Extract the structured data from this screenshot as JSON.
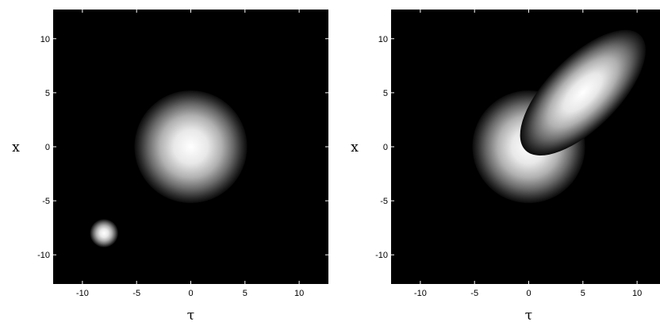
{
  "chart_data": [
    {
      "type": "heatmap",
      "xlabel": "τ",
      "ylabel": "x",
      "xlim": [
        -12.7,
        12.7
      ],
      "ylim": [
        -12.7,
        12.7
      ],
      "xticks": [
        -10,
        -5,
        0,
        5,
        10
      ],
      "yticks": [
        -10,
        -5,
        0,
        5,
        10
      ],
      "xtick_labels": [
        "-10",
        "-5",
        "0",
        "5",
        "10"
      ],
      "ytick_labels": [
        "-10",
        "-5",
        "0",
        "5",
        "10"
      ],
      "colormap": "grayscale (black = 0, white = max)",
      "grid": false,
      "blobs": [
        {
          "shape": "circle",
          "center": [
            0,
            0
          ],
          "radius": 5.2,
          "peak_intensity": 1.0
        },
        {
          "shape": "circle",
          "center": [
            -8,
            -8
          ],
          "radius": 1.3,
          "peak_intensity": 1.0
        }
      ]
    },
    {
      "type": "heatmap",
      "xlabel": "τ",
      "ylabel": "x",
      "xlim": [
        -12.7,
        12.7
      ],
      "ylim": [
        -12.7,
        12.7
      ],
      "xticks": [
        -10,
        -5,
        0,
        5,
        10
      ],
      "yticks": [
        -10,
        -5,
        0,
        5,
        10
      ],
      "xtick_labels": [
        "-10",
        "-5",
        "0",
        "5",
        "10"
      ],
      "ytick_labels": [
        "-10",
        "-5",
        "0",
        "5",
        "10"
      ],
      "colormap": "grayscale (black = 0, white = max)",
      "grid": false,
      "blobs": [
        {
          "shape": "circle",
          "center": [
            0,
            0
          ],
          "radius": 5.2,
          "peak_intensity": 1.0
        },
        {
          "shape": "ellipse",
          "center": [
            5,
            5
          ],
          "semi_axes": [
            7.5,
            3.3
          ],
          "rotation_deg": -45,
          "peak_intensity": 1.0
        }
      ]
    }
  ]
}
